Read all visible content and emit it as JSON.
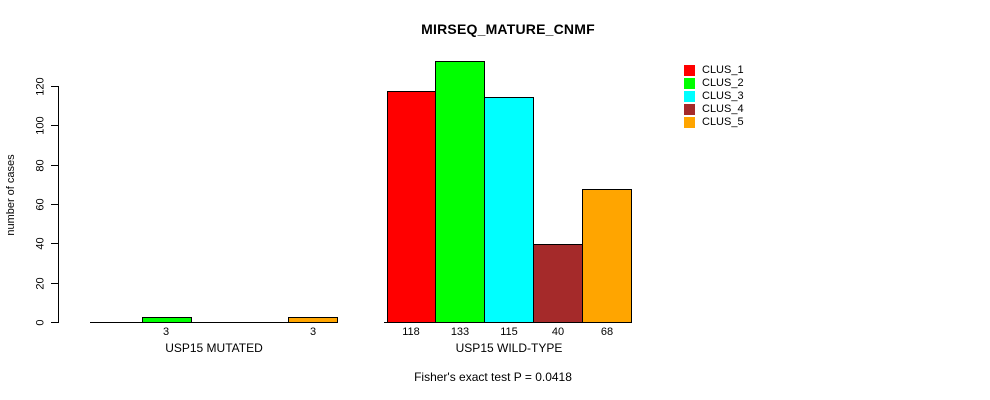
{
  "title": "MIRSEQ_MATURE_CNMF",
  "footer": "Fisher's exact test P = 0.0418",
  "y_axis": {
    "label": "number of cases",
    "ticks": [
      0,
      20,
      40,
      60,
      80,
      100,
      120
    ]
  },
  "x_axis": {
    "groups": [
      "USP15 MUTATED",
      "USP15 WILD-TYPE"
    ]
  },
  "legend": {
    "items": [
      {
        "label": "CLUS_1",
        "color": "#FF0000"
      },
      {
        "label": "CLUS_2",
        "color": "#00FF00"
      },
      {
        "label": "CLUS_3",
        "color": "#00FFFF"
      },
      {
        "label": "CLUS_4",
        "color": "#A52A2A"
      },
      {
        "label": "CLUS_5",
        "color": "#FFA500"
      }
    ]
  },
  "chart_data": {
    "type": "bar",
    "title": "MIRSEQ_MATURE_CNMF",
    "xlabel": "",
    "ylabel": "number of cases",
    "ylim": [
      0,
      133
    ],
    "yticks": [
      0,
      20,
      40,
      60,
      80,
      100,
      120
    ],
    "categories": [
      "USP15 MUTATED",
      "USP15 WILD-TYPE"
    ],
    "series": [
      {
        "name": "CLUS_1",
        "color": "#FF0000",
        "values": [
          0,
          118
        ]
      },
      {
        "name": "CLUS_2",
        "color": "#00FF00",
        "values": [
          3,
          133
        ]
      },
      {
        "name": "CLUS_3",
        "color": "#00FFFF",
        "values": [
          0,
          115
        ]
      },
      {
        "name": "CLUS_4",
        "color": "#A52A2A",
        "values": [
          0,
          40
        ]
      },
      {
        "name": "CLUS_5",
        "color": "#FFA500",
        "values": [
          3,
          68
        ]
      }
    ],
    "bar_value_labels": [
      [
        "",
        "3",
        "",
        "",
        "3"
      ],
      [
        "118",
        "133",
        "115",
        "40",
        "68"
      ]
    ],
    "annotation": "Fisher's exact test P = 0.0418",
    "legend_position": "top-right",
    "legend_entries": [
      "CLUS_1",
      "CLUS_2",
      "CLUS_3",
      "CLUS_4",
      "CLUS_5"
    ],
    "grid": false
  }
}
